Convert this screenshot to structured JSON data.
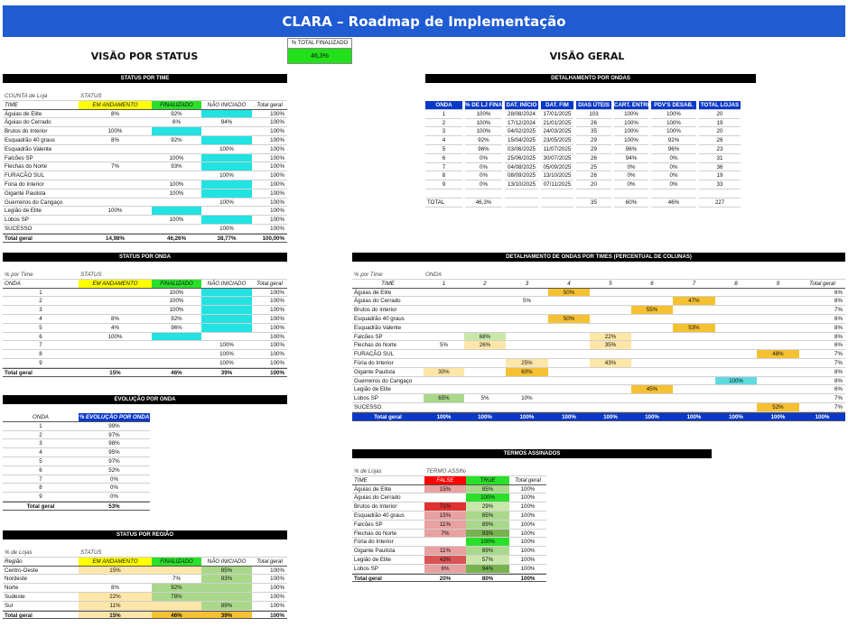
{
  "title": "CLARA – Roadmap de Implementação",
  "kpi": {
    "label": "% TOTAL FINALIZADO",
    "value": "46,3%"
  },
  "headings": {
    "status": "VISÃO POR STATUS",
    "geral": "VISÃO GERAL"
  },
  "colors": {
    "banner": "#1f5bd1",
    "yellow": "#ffff00",
    "green": "#2be02b",
    "cyan": "#22e2e2",
    "orange": "#f5c132",
    "red": "#ff0000",
    "header_blue": "#0a38c9"
  },
  "status_time": {
    "title": "STATUS POR TIME",
    "sub1": "COUNTA de Loja",
    "sub2": "STATUS",
    "headers": [
      "TIME",
      "EM ANDAMENTO",
      "FINALIZADO",
      "NÃO INICIADO",
      "Total geral"
    ],
    "rows": [
      {
        "c": [
          "Águias de Elite",
          "8%",
          "92%",
          "",
          "100%"
        ],
        "h": [
          0,
          0,
          1,
          0
        ]
      },
      {
        "c": [
          "Águias do Cerrado",
          "",
          "6%",
          "94%",
          "100%"
        ],
        "h": [
          0,
          0,
          0,
          1
        ]
      },
      {
        "c": [
          "Brutos do Interior",
          "100%",
          "",
          "",
          "100%"
        ],
        "h": [
          0,
          2,
          0,
          0
        ]
      },
      {
        "c": [
          "Esquadrão 40 graus",
          "8%",
          "92%",
          "",
          "100%"
        ],
        "h": [
          0,
          0,
          1,
          0
        ]
      },
      {
        "c": [
          "Esquadrão Valente",
          "",
          "",
          "100%",
          "100%"
        ],
        "h": [
          0,
          0,
          0,
          1
        ]
      },
      {
        "c": [
          "Falcões SP",
          "",
          "100%",
          "",
          "100%"
        ],
        "h": [
          0,
          0,
          1,
          0
        ]
      },
      {
        "c": [
          "Flechas do Norte",
          "7%",
          "93%",
          "",
          "100%"
        ],
        "h": [
          0,
          0,
          1,
          0
        ]
      },
      {
        "c": [
          "FURACÃO SUL",
          "",
          "",
          "100%",
          "100%"
        ],
        "h": [
          0,
          0,
          0,
          1
        ]
      },
      {
        "c": [
          "Fúria do Interior",
          "",
          "100%",
          "",
          "100%"
        ],
        "h": [
          0,
          0,
          1,
          0
        ]
      },
      {
        "c": [
          "Gigante Paulista",
          "",
          "100%",
          "",
          "100%"
        ],
        "h": [
          0,
          0,
          1,
          0
        ]
      },
      {
        "c": [
          "Guerreiros do Cangaço",
          "",
          "",
          "100%",
          "100%"
        ],
        "h": [
          0,
          0,
          0,
          1
        ]
      },
      {
        "c": [
          "Legião de Elite",
          "100%",
          "",
          "",
          "100%"
        ],
        "h": [
          0,
          2,
          0,
          0
        ]
      },
      {
        "c": [
          "Lobos SP",
          "",
          "100%",
          "",
          "100%"
        ],
        "h": [
          0,
          0,
          1,
          0
        ]
      },
      {
        "c": [
          "SUCESSO",
          "",
          "",
          "100%",
          "100%"
        ],
        "h": [
          0,
          0,
          0,
          1
        ]
      }
    ],
    "total": [
      "Total geral",
      "14,98%",
      "46,26%",
      "38,77%",
      "100,00%"
    ]
  },
  "status_onda": {
    "title": "STATUS POR ONDA",
    "sub1": "% por Time",
    "sub2": "STATUS",
    "headers": [
      "ONDA",
      "EM ANDAMENTO",
      "FINALIZADO",
      "NÃO INICIADO",
      "Total geral"
    ],
    "rows": [
      {
        "c": [
          "1",
          "",
          "100%",
          "",
          "100%"
        ],
        "h": [
          0,
          0,
          1,
          0
        ]
      },
      {
        "c": [
          "2",
          "",
          "100%",
          "",
          "100%"
        ],
        "h": [
          0,
          0,
          1,
          0
        ]
      },
      {
        "c": [
          "3",
          "",
          "100%",
          "",
          "100%"
        ],
        "h": [
          0,
          0,
          1,
          0
        ]
      },
      {
        "c": [
          "4",
          "8%",
          "92%",
          "",
          "100%"
        ],
        "h": [
          0,
          0,
          1,
          0
        ]
      },
      {
        "c": [
          "5",
          "4%",
          "96%",
          "",
          "100%"
        ],
        "h": [
          0,
          0,
          1,
          0
        ]
      },
      {
        "c": [
          "6",
          "100%",
          "",
          "",
          "100%"
        ],
        "h": [
          0,
          2,
          0,
          0
        ]
      },
      {
        "c": [
          "7",
          "",
          "",
          "100%",
          "100%"
        ],
        "h": [
          0,
          0,
          0,
          1
        ]
      },
      {
        "c": [
          "8",
          "",
          "",
          "100%",
          "100%"
        ],
        "h": [
          0,
          0,
          0,
          1
        ]
      },
      {
        "c": [
          "9",
          "",
          "",
          "100%",
          "100%"
        ],
        "h": [
          0,
          0,
          0,
          1
        ]
      }
    ],
    "total": [
      "Total geral",
      "15%",
      "46%",
      "39%",
      "100%"
    ]
  },
  "evolucao": {
    "title": "EVOLUÇÃO POR ONDA",
    "headers": [
      "ONDA",
      "% EVOLUÇÃO POR ONDA"
    ],
    "rows": [
      [
        "1",
        "99%"
      ],
      [
        "2",
        "97%"
      ],
      [
        "3",
        "98%"
      ],
      [
        "4",
        "95%"
      ],
      [
        "5",
        "97%"
      ],
      [
        "6",
        "52%"
      ],
      [
        "7",
        "0%"
      ],
      [
        "8",
        "0%"
      ],
      [
        "9",
        "0%"
      ]
    ],
    "total": [
      "Total geral",
      "53%"
    ]
  },
  "regiao": {
    "title": "STATUS POR REGIÃO",
    "sub1": "% de Lojas",
    "sub2": "STATUS",
    "headers": [
      "Região",
      "EM ANDAMENTO",
      "FINALIZADO",
      "NÃO INICIADO",
      "Total geral"
    ],
    "rows": [
      {
        "c": [
          "Centro-Oeste",
          "15%",
          "",
          "85%",
          "100%"
        ],
        "h": [
          "",
          "lor",
          "",
          "mgrc",
          ""
        ]
      },
      {
        "c": [
          "Nordeste",
          "",
          "7%",
          "93%",
          "100%"
        ],
        "h": [
          "",
          "",
          "",
          "mgrc",
          ""
        ]
      },
      {
        "c": [
          "Norte",
          "8%",
          "92%",
          "",
          "100%"
        ],
        "h": [
          "",
          "",
          "mgrc",
          "",
          ""
        ]
      },
      {
        "c": [
          "Sudeste",
          "22%",
          "78%",
          "",
          "100%"
        ],
        "h": [
          "",
          "lor",
          "mgrc",
          "",
          ""
        ]
      },
      {
        "c": [
          "Sul",
          "11%",
          "",
          "89%",
          "100%"
        ],
        "h": [
          "",
          "lor",
          "",
          "mgrc",
          ""
        ]
      }
    ],
    "total": [
      "Total geral",
      "15%",
      "46%",
      "39%",
      "100%"
    ]
  },
  "detalhamento": {
    "title": "DETALHAMENTO POR ONDAS",
    "headers": [
      "ONDA",
      "% DE LJ FINAL.",
      "DAT. INÍCIO",
      "DAT. FIM",
      "DIAS ÚTEIS",
      "CART. ENTREG.",
      "PDV'S DESAB.",
      "TOTAL LOJAS"
    ],
    "rows": [
      [
        "1",
        "100%",
        "28/08/2024",
        "17/01/2025",
        "103",
        "100%",
        "100%",
        "20"
      ],
      [
        "2",
        "100%",
        "17/12/2024",
        "21/01/2025",
        "26",
        "100%",
        "100%",
        "19"
      ],
      [
        "3",
        "100%",
        "04/02/2025",
        "24/03/2025",
        "35",
        "100%",
        "100%",
        "20"
      ],
      [
        "4",
        "92%",
        "15/04/2025",
        "23/05/2025",
        "29",
        "100%",
        "92%",
        "26"
      ],
      [
        "5",
        "96%",
        "03/06/2025",
        "11/07/2025",
        "29",
        "96%",
        "96%",
        "23"
      ],
      [
        "6",
        "0%",
        "25/06/2025",
        "30/07/2025",
        "26",
        "94%",
        "0%",
        "31"
      ],
      [
        "7",
        "0%",
        "04/08/2025",
        "05/09/2025",
        "25",
        "0%",
        "0%",
        "36"
      ],
      [
        "8",
        "0%",
        "08/09/2025",
        "13/10/2025",
        "26",
        "0%",
        "0%",
        "19"
      ],
      [
        "9",
        "0%",
        "13/10/2025",
        "07/11/2025",
        "20",
        "0%",
        "0%",
        "33"
      ]
    ],
    "total": [
      "TOTAL",
      "46,3%",
      "",
      "",
      "35",
      "60%",
      "46%",
      "227"
    ]
  },
  "ondas_times": {
    "title": "DETALHAMENTO DE ONDAS POR TIMES (PERCENTUAL DE COLUNAS)",
    "sub1": "% por Time",
    "sub2": "ONDA",
    "headers": [
      "TIME",
      "1",
      "2",
      "3",
      "4",
      "5",
      "6",
      "7",
      "8",
      "9",
      "Total geral"
    ],
    "rows": [
      {
        "c": [
          "Águias de Elite",
          "",
          "",
          "",
          "50%",
          "",
          "",
          "",
          "",
          "",
          "6%"
        ],
        "h": [
          "",
          "",
          "",
          "",
          "or",
          "",
          "",
          "",
          "",
          "",
          ""
        ]
      },
      {
        "c": [
          "Águias do Cerrado",
          "",
          "",
          "5%",
          "",
          "",
          "",
          "47%",
          "",
          "",
          "8%"
        ],
        "h": [
          "",
          "",
          "",
          "",
          "",
          "",
          "",
          "or",
          "",
          "",
          ""
        ]
      },
      {
        "c": [
          "Brutos do Interior",
          "",
          "",
          "",
          "",
          "",
          "55%",
          "",
          "",
          "",
          "7%"
        ],
        "h": [
          "",
          "",
          "",
          "",
          "",
          "",
          "or",
          "",
          "",
          "",
          ""
        ]
      },
      {
        "c": [
          "Esquadrão 40 graus",
          "",
          "",
          "",
          "50%",
          "",
          "",
          "",
          "",
          "",
          "6%"
        ],
        "h": [
          "",
          "",
          "",
          "",
          "or",
          "",
          "",
          "",
          "",
          "",
          ""
        ]
      },
      {
        "c": [
          "Esquadrão Valente",
          "",
          "",
          "",
          "",
          "",
          "",
          "53%",
          "",
          "",
          "8%"
        ],
        "h": [
          "",
          "",
          "",
          "",
          "",
          "",
          "",
          "or",
          "",
          "",
          ""
        ]
      },
      {
        "c": [
          "Falcões SP",
          "",
          "68%",
          "",
          "",
          "22%",
          "",
          "",
          "",
          "",
          "8%"
        ],
        "h": [
          "",
          "",
          "lgr",
          "",
          "",
          "lor",
          "",
          "",
          "",
          "",
          ""
        ]
      },
      {
        "c": [
          "Flechas do Norte",
          "5%",
          "26%",
          "",
          "",
          "35%",
          "",
          "",
          "",
          "",
          "6%"
        ],
        "h": [
          "",
          "",
          "lor",
          "",
          "",
          "lor",
          "",
          "",
          "",
          "",
          ""
        ]
      },
      {
        "c": [
          "FURACÃO SUL",
          "",
          "",
          "",
          "",
          "",
          "",
          "",
          "",
          "48%",
          "7%"
        ],
        "h": [
          "",
          "",
          "",
          "",
          "",
          "",
          "",
          "",
          "",
          "or",
          ""
        ]
      },
      {
        "c": [
          "Fúria do Interior",
          "",
          "",
          "25%",
          "",
          "43%",
          "",
          "",
          "",
          "",
          "7%"
        ],
        "h": [
          "",
          "",
          "",
          "lor",
          "",
          "lor",
          "",
          "",
          "",
          "",
          ""
        ]
      },
      {
        "c": [
          "Gigante Paulista",
          "30%",
          "",
          "60%",
          "",
          "",
          "",
          "",
          "",
          "",
          "8%"
        ],
        "h": [
          "",
          "lor",
          "",
          "or",
          "",
          "",
          "",
          "",
          "",
          "",
          ""
        ]
      },
      {
        "c": [
          "Guerreiros do Cangaço",
          "",
          "",
          "",
          "",
          "",
          "",
          "",
          "100%",
          "",
          "8%"
        ],
        "h": [
          "",
          "",
          "",
          "",
          "",
          "",
          "",
          "",
          "mcy",
          "",
          ""
        ]
      },
      {
        "c": [
          "Legião de Elite",
          "",
          "",
          "",
          "",
          "",
          "45%",
          "",
          "",
          "",
          "6%"
        ],
        "h": [
          "",
          "",
          "",
          "",
          "",
          "",
          "or",
          "",
          "",
          "",
          ""
        ]
      },
      {
        "c": [
          "Lobos SP",
          "65%",
          "5%",
          "10%",
          "",
          "",
          "",
          "",
          "",
          "",
          "7%"
        ],
        "h": [
          "",
          "mgr",
          "",
          "",
          "",
          "",
          "",
          "",
          "",
          "",
          ""
        ]
      },
      {
        "c": [
          "SUCESSO",
          "",
          "",
          "",
          "",
          "",
          "",
          "",
          "",
          "52%",
          "7%"
        ],
        "h": [
          "",
          "",
          "",
          "",
          "",
          "",
          "",
          "",
          "",
          "or",
          ""
        ]
      }
    ],
    "total": [
      "Total geral",
      "100%",
      "100%",
      "100%",
      "100%",
      "100%",
      "100%",
      "100%",
      "100%",
      "100%",
      "100%"
    ]
  },
  "termos": {
    "title": "TERMOS ASSINADOS",
    "sub1": "% de Lojas",
    "sub2": "TERMO ASSINADO",
    "headers": [
      "TIME",
      "FALSE",
      "TRUE",
      "Total geral"
    ],
    "rows": [
      {
        "c": [
          "Águias de Elite",
          "15%",
          "85%",
          "100%"
        ],
        "h": [
          "",
          "lred",
          "mgr",
          ""
        ]
      },
      {
        "c": [
          "Águias do Cerrado",
          "",
          "100%",
          "100%"
        ],
        "h": [
          "",
          "",
          "grn",
          ""
        ]
      },
      {
        "c": [
          "Brutos do Interior",
          "71%",
          "29%",
          "100%"
        ],
        "h": [
          "",
          "dred",
          "lgr",
          ""
        ]
      },
      {
        "c": [
          "Esquadrão 40 graus",
          "15%",
          "85%",
          "100%"
        ],
        "h": [
          "",
          "lred",
          "mgr",
          ""
        ]
      },
      {
        "c": [
          "Falcões SP",
          "11%",
          "89%",
          "100%"
        ],
        "h": [
          "",
          "lred",
          "mgr",
          ""
        ]
      },
      {
        "c": [
          "Flechas do Norte",
          "7%",
          "93%",
          "100%"
        ],
        "h": [
          "",
          "lred",
          "dgr",
          ""
        ]
      },
      {
        "c": [
          "Fúria do Interior",
          "",
          "100%",
          "100%"
        ],
        "h": [
          "",
          "",
          "grn",
          ""
        ]
      },
      {
        "c": [
          "Gigante Paulista",
          "11%",
          "89%",
          "100%"
        ],
        "h": [
          "",
          "lred",
          "mgr",
          ""
        ]
      },
      {
        "c": [
          "Legião de Elite",
          "43%",
          "57%",
          "100%"
        ],
        "h": [
          "",
          "mred",
          "lgr",
          ""
        ]
      },
      {
        "c": [
          "Lobos SP",
          "6%",
          "94%",
          "100%"
        ],
        "h": [
          "",
          "lred",
          "dgr",
          ""
        ]
      }
    ],
    "total": [
      "Total geral",
      "20%",
      "80%",
      "100%"
    ]
  }
}
